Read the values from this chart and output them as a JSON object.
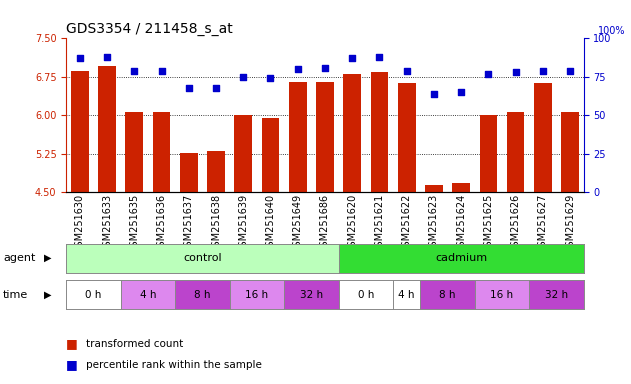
{
  "title": "GDS3354 / 211458_s_at",
  "samples": [
    "GSM251630",
    "GSM251633",
    "GSM251635",
    "GSM251636",
    "GSM251637",
    "GSM251638",
    "GSM251639",
    "GSM251640",
    "GSM251649",
    "GSM251686",
    "GSM251620",
    "GSM251621",
    "GSM251622",
    "GSM251623",
    "GSM251624",
    "GSM251625",
    "GSM251626",
    "GSM251627",
    "GSM251629"
  ],
  "bar_values": [
    6.87,
    6.96,
    6.06,
    6.06,
    5.27,
    5.3,
    6.0,
    5.95,
    6.64,
    6.65,
    6.81,
    6.84,
    6.62,
    4.63,
    4.68,
    6.01,
    6.06,
    6.62,
    6.07
  ],
  "dot_values": [
    87,
    88,
    79,
    79,
    68,
    68,
    75,
    74,
    80,
    81,
    87,
    88,
    79,
    64,
    65,
    77,
    78,
    79,
    79
  ],
  "ylim_left": [
    4.5,
    7.5
  ],
  "ylim_right": [
    0,
    100
  ],
  "yticks_left": [
    4.5,
    5.25,
    6.0,
    6.75,
    7.5
  ],
  "yticks_right": [
    0,
    25,
    50,
    75,
    100
  ],
  "bar_color": "#cc2200",
  "dot_color": "#0000cc",
  "bg_color": "#ffffff",
  "agent_control_color": "#bbffbb",
  "agent_cadmium_color": "#33dd33",
  "control_label": "control",
  "cadmium_label": "cadmium",
  "agent_label": "agent",
  "time_label": "time",
  "legend_bar": "transformed count",
  "legend_dot": "percentile rank within the sample",
  "title_fontsize": 10,
  "tick_fontsize": 7,
  "n_control": 10,
  "n_cadmium": 9,
  "control_counts": [
    2,
    2,
    2,
    2,
    2
  ],
  "cadmium_counts": [
    2,
    1,
    2,
    2,
    2
  ],
  "time_labels_control": [
    "0 h",
    "4 h",
    "8 h",
    "16 h",
    "32 h"
  ],
  "time_labels_cadmium": [
    "0 h",
    "4 h",
    "8 h",
    "16 h",
    "32 h"
  ],
  "control_time_colors": [
    "#ffffff",
    "#dd88ee",
    "#bb44cc",
    "#dd88ee",
    "#bb44cc"
  ],
  "cadmium_time_colors": [
    "#ffffff",
    "#ffffff",
    "#bb44cc",
    "#dd88ee",
    "#bb44cc"
  ]
}
